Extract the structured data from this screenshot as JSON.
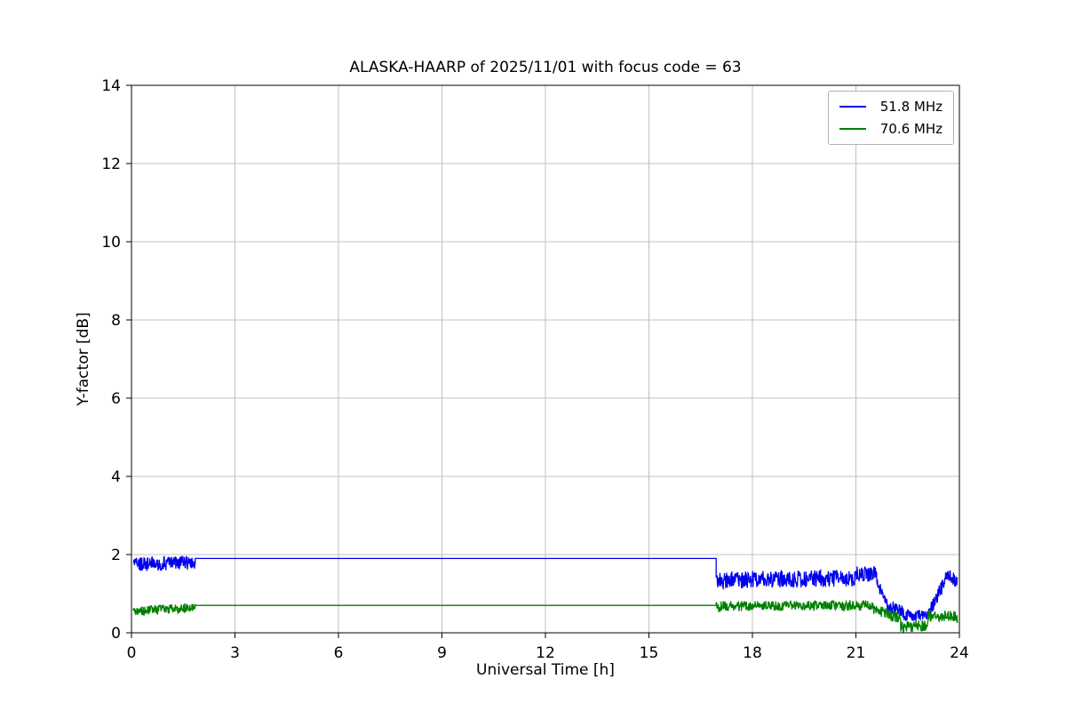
{
  "figure": {
    "title": "ALASKA-HAARP of 2025/11/01 with focus code = 63",
    "xlabel": "Universal Time [h]",
    "ylabel": "Y-factor [dB]"
  },
  "chart_data": {
    "type": "line",
    "title": "ALASKA-HAARP of 2025/11/01 with focus code = 63",
    "xlabel": "Universal Time [h]",
    "ylabel": "Y-factor [dB]",
    "xlim": [
      0,
      24
    ],
    "ylim": [
      0,
      14
    ],
    "xticks": [
      0,
      3,
      6,
      9,
      12,
      15,
      18,
      21,
      24
    ],
    "yticks": [
      0,
      2,
      4,
      6,
      8,
      10,
      12,
      14
    ],
    "grid": true,
    "grid_color": "#c0c0c0",
    "legend_position": "upper right",
    "series": [
      {
        "name": "51.8 MHz",
        "color": "#0000ee",
        "description": "Noisy band ~1.5-2.0 dB from 0-1.85h, constant 1.9 dB from 1.85-16.95h, noisy ~1.2-1.7 dB from 17-21.6h, drop to ~0.4-0.6 dB around 22-23h, recovery to ~1.4 dB by 24h",
        "segments": [
          {
            "type": "noisy",
            "x0": 0.05,
            "x1": 1.85,
            "y0": 1.75,
            "y1": 1.8,
            "amp": 0.18
          },
          {
            "type": "flat",
            "x0": 1.85,
            "x1": 16.95,
            "y0": 1.9,
            "y1": 1.9
          },
          {
            "type": "noisy",
            "x0": 16.95,
            "x1": 21.0,
            "y0": 1.35,
            "y1": 1.4,
            "amp": 0.22
          },
          {
            "type": "noisy",
            "x0": 21.0,
            "x1": 21.6,
            "y0": 1.5,
            "y1": 1.5,
            "amp": 0.2
          },
          {
            "type": "noisy",
            "x0": 21.6,
            "x1": 21.9,
            "y0": 1.3,
            "y1": 0.75,
            "amp": 0.15
          },
          {
            "type": "noisy",
            "x0": 21.9,
            "x1": 22.4,
            "y0": 0.7,
            "y1": 0.5,
            "amp": 0.18
          },
          {
            "type": "noisy",
            "x0": 22.4,
            "x1": 23.1,
            "y0": 0.45,
            "y1": 0.45,
            "amp": 0.15
          },
          {
            "type": "noisy",
            "x0": 23.1,
            "x1": 23.6,
            "y0": 0.5,
            "y1": 1.35,
            "amp": 0.18
          },
          {
            "type": "noisy",
            "x0": 23.6,
            "x1": 23.95,
            "y0": 1.45,
            "y1": 1.35,
            "amp": 0.2
          }
        ]
      },
      {
        "name": "70.6 MHz",
        "color": "#008000",
        "description": "Noisy band ~0.45-0.75 dB from 0-1.85h, constant 0.7 dB from 1.85-16.95h, noisy ~0.55-0.85 dB from 17-21.5h, dip to ~0-0.3 dB around 22.3-23.1h, recovery to ~0.45 dB by 24h",
        "segments": [
          {
            "type": "noisy",
            "x0": 0.05,
            "x1": 1.85,
            "y0": 0.55,
            "y1": 0.65,
            "amp": 0.12
          },
          {
            "type": "flat",
            "x0": 1.85,
            "x1": 16.95,
            "y0": 0.7,
            "y1": 0.7
          },
          {
            "type": "noisy",
            "x0": 16.95,
            "x1": 21.5,
            "y0": 0.68,
            "y1": 0.7,
            "amp": 0.13
          },
          {
            "type": "noisy",
            "x0": 21.5,
            "x1": 22.3,
            "y0": 0.6,
            "y1": 0.35,
            "amp": 0.15
          },
          {
            "type": "noisy",
            "x0": 22.3,
            "x1": 23.1,
            "y0": 0.15,
            "y1": 0.2,
            "amp": 0.15
          },
          {
            "type": "noisy",
            "x0": 23.1,
            "x1": 23.95,
            "y0": 0.45,
            "y1": 0.4,
            "amp": 0.15
          }
        ]
      }
    ]
  }
}
